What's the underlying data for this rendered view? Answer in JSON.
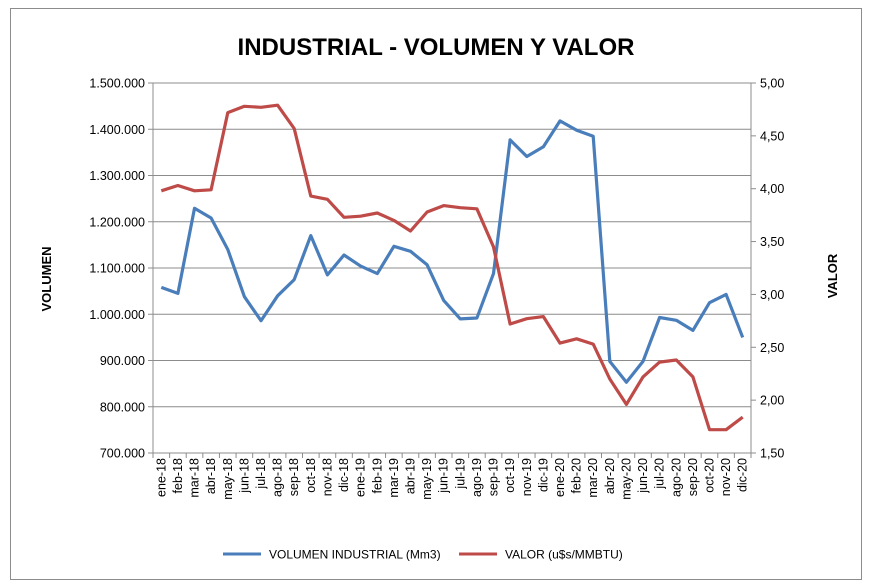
{
  "chart_data": {
    "type": "line",
    "title": "INDUSTRIAL - VOLUMEN Y VALOR",
    "ylabel_left": "VOLUMEN",
    "ylabel_right": "VALOR",
    "ylim_left": [
      700000,
      1500000
    ],
    "ylim_right": [
      1.5,
      5.0
    ],
    "yticks_left": [
      "700.000",
      "800.000",
      "900.000",
      "1.000.000",
      "1.100.000",
      "1.200.000",
      "1.300.000",
      "1.400.000",
      "1.500.000"
    ],
    "yticks_right": [
      "1,50",
      "2,00",
      "2,50",
      "3,00",
      "3,50",
      "4,00",
      "4,50",
      "5,00"
    ],
    "categories": [
      "ene-18",
      "feb-18",
      "mar-18",
      "abr-18",
      "may-18",
      "jun-18",
      "jul-18",
      "ago-18",
      "sep-18",
      "oct-18",
      "nov-18",
      "dic-18",
      "ene-19",
      "feb-19",
      "mar-19",
      "abr-19",
      "may-19",
      "jun-19",
      "jul-19",
      "ago-19",
      "sep-19",
      "oct-19",
      "nov-19",
      "dic-19",
      "ene-20",
      "feb-20",
      "mar-20",
      "abr-20",
      "may-20",
      "jun-20",
      "jul-20",
      "ago-20",
      "sep-20",
      "oct-20",
      "nov-20",
      "dic-20"
    ],
    "series": [
      {
        "name": "VOLUMEN INDUSTRIAL (Mm3)",
        "axis": "left",
        "color": "#4a7ebb",
        "values": [
          1058000,
          1045000,
          1229000,
          1208000,
          1140000,
          1038000,
          986000,
          1040000,
          1075000,
          1170000,
          1085000,
          1128000,
          1104000,
          1088000,
          1147000,
          1136000,
          1107000,
          1030000,
          990000,
          992000,
          1088000,
          1377000,
          1341000,
          1362000,
          1418000,
          1398000,
          1385000,
          898000,
          853000,
          898000,
          993000,
          987000,
          965000,
          1025000,
          1043000,
          950000
        ]
      },
      {
        "name": "VALOR (u$s/MMBTU)",
        "axis": "right",
        "color": "#be4b48",
        "values": [
          3.98,
          4.03,
          3.98,
          3.99,
          4.72,
          4.78,
          4.77,
          4.79,
          4.57,
          3.93,
          3.9,
          3.73,
          3.74,
          3.77,
          3.7,
          3.6,
          3.78,
          3.84,
          3.82,
          3.81,
          3.45,
          2.72,
          2.77,
          2.79,
          2.54,
          2.58,
          2.53,
          2.2,
          1.96,
          2.22,
          2.36,
          2.38,
          2.22,
          1.72,
          1.72,
          1.84
        ]
      }
    ],
    "legend": "bottom",
    "grid": "horizontal"
  }
}
